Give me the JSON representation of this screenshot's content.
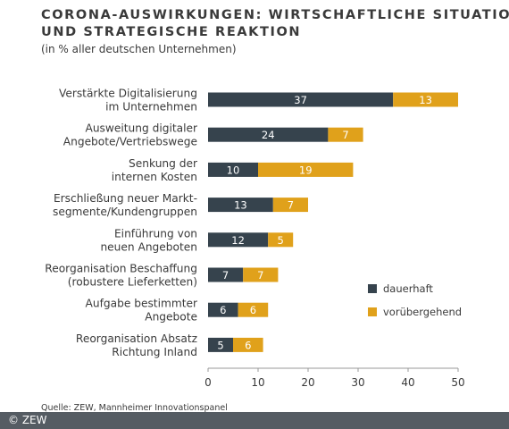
{
  "header": {
    "title_line1": "CORONA-AUSWIRKUNGEN: WIRTSCHAFTLICHE SITUATION",
    "title_line2": "UND STRATEGISCHE REAKTION",
    "subtitle": "(in % aller deutschen Unternehmen)"
  },
  "footer": {
    "source": "Quelle: ZEW, Mannheimer Innovationspanel",
    "copyright": "© ZEW"
  },
  "colors": {
    "dauerhaft": "#36434d",
    "voruebergehend": "#e0a11b",
    "axis": "#999999",
    "footer_bg": "#555c63"
  },
  "chart_data": {
    "type": "bar",
    "orientation": "horizontal",
    "stacked": true,
    "categories": [
      [
        "Verstärkte Digitalisierung",
        "im Unternehmen"
      ],
      [
        "Ausweitung digitaler",
        "Angebote/Vertriebswege"
      ],
      [
        "Senkung der",
        "internen Kosten"
      ],
      [
        "Erschließung neuer Markt-",
        "segmente/Kundengruppen"
      ],
      [
        "Einführung von",
        "neuen Angeboten"
      ],
      [
        "Reorganisation Beschaffung",
        "(robustere Lieferketten)"
      ],
      [
        "Aufgabe bestimmter",
        "Angebote"
      ],
      [
        "Reorganisation Absatz",
        "Richtung Inland"
      ]
    ],
    "series": [
      {
        "name": "dauerhaft",
        "values": [
          37,
          24,
          10,
          13,
          12,
          7,
          6,
          5
        ]
      },
      {
        "name": "vorübergehend",
        "values": [
          13,
          7,
          19,
          7,
          5,
          7,
          6,
          6
        ]
      }
    ],
    "xlim": [
      0,
      50
    ],
    "xticks": [
      "0",
      "10",
      "20",
      "30",
      "40",
      "50"
    ],
    "grid": false,
    "legend_position": "right"
  }
}
